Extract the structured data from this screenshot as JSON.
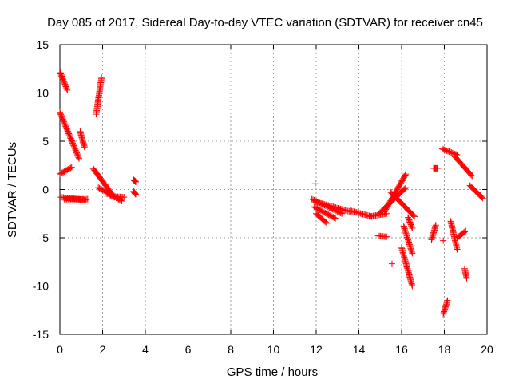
{
  "chart_data": {
    "type": "scatter",
    "title": "Day 085 of 2017, Sidereal Day-to-day VTEC variation (SDTVAR) for receiver cn45",
    "xlabel": "GPS time / hours",
    "ylabel": "SDTVAR / TECUs",
    "xlim": [
      0,
      20
    ],
    "ylim": [
      -15,
      15
    ],
    "xticks": [
      "0",
      "2",
      "4",
      "6",
      "8",
      "10",
      "12",
      "14",
      "16",
      "18",
      "20"
    ],
    "yticks": [
      "-15",
      "-10",
      "-5",
      "0",
      "5",
      "10",
      "15"
    ],
    "grid": true,
    "legend": "none",
    "marker": "+",
    "color": "#ff0000",
    "segments": [
      {
        "x0": 0.02,
        "x1": 0.35,
        "y0": 12.1,
        "y1": 10.3
      },
      {
        "x0": 0.0,
        "x1": 0.9,
        "y0": 8.0,
        "y1": 3.2
      },
      {
        "x0": 0.0,
        "x1": 0.55,
        "y0": 1.6,
        "y1": 2.3
      },
      {
        "x0": 0.05,
        "x1": 1.2,
        "y0": -0.8,
        "y1": -1.1
      },
      {
        "x0": 0.2,
        "x1": 1.3,
        "y0": -1.0,
        "y1": -1.0
      },
      {
        "x0": 0.95,
        "x1": 1.15,
        "y0": 6.0,
        "y1": 4.4
      },
      {
        "x0": 1.7,
        "x1": 1.95,
        "y0": 7.8,
        "y1": 11.6
      },
      {
        "x0": 1.55,
        "x1": 2.55,
        "y0": 2.2,
        "y1": -0.8
      },
      {
        "x0": 1.8,
        "x1": 2.9,
        "y0": 0.2,
        "y1": -1.2
      },
      {
        "x0": 2.3,
        "x1": 3.0,
        "y0": -0.7,
        "y1": -0.8
      },
      {
        "x0": 3.45,
        "x1": 3.55,
        "y0": 1.0,
        "y1": 0.8
      },
      {
        "x0": 3.45,
        "x1": 3.55,
        "y0": -0.2,
        "y1": -0.5
      },
      {
        "x0": 11.8,
        "x1": 13.2,
        "y0": -1.0,
        "y1": -2.5
      },
      {
        "x0": 12.0,
        "x1": 13.6,
        "y0": -1.3,
        "y1": -2.3
      },
      {
        "x0": 11.9,
        "x1": 12.9,
        "y0": -1.8,
        "y1": -3.0
      },
      {
        "x0": 12.0,
        "x1": 12.5,
        "y0": -2.5,
        "y1": -3.5
      },
      {
        "x0": 13.6,
        "x1": 14.6,
        "y0": -2.2,
        "y1": -2.8
      },
      {
        "x0": 14.5,
        "x1": 15.3,
        "y0": -2.8,
        "y1": -2.5
      },
      {
        "x0": 15.2,
        "x1": 16.2,
        "y0": -2.3,
        "y1": 1.6
      },
      {
        "x0": 14.9,
        "x1": 16.2,
        "y0": -2.6,
        "y1": 0.2
      },
      {
        "x0": 15.5,
        "x1": 16.6,
        "y0": -0.3,
        "y1": -2.8
      },
      {
        "x0": 14.9,
        "x1": 15.3,
        "y0": -4.8,
        "y1": -4.9
      },
      {
        "x0": 16.0,
        "x1": 16.5,
        "y0": -6.0,
        "y1": -10.0
      },
      {
        "x0": 16.1,
        "x1": 16.5,
        "y0": -3.8,
        "y1": -6.6
      },
      {
        "x0": 16.3,
        "x1": 16.5,
        "y0": -2.9,
        "y1": -4.0
      },
      {
        "x0": 17.5,
        "x1": 17.7,
        "y0": 2.2,
        "y1": 2.2
      },
      {
        "x0": 17.4,
        "x1": 17.6,
        "y0": -5.2,
        "y1": -3.7
      },
      {
        "x0": 17.9,
        "x1": 18.6,
        "y0": 4.2,
        "y1": 3.6
      },
      {
        "x0": 18.5,
        "x1": 19.3,
        "y0": 3.4,
        "y1": 1.4
      },
      {
        "x0": 19.2,
        "x1": 19.8,
        "y0": 0.4,
        "y1": -0.9
      },
      {
        "x0": 17.95,
        "x1": 18.15,
        "y0": -12.9,
        "y1": -11.5
      },
      {
        "x0": 18.3,
        "x1": 18.6,
        "y0": -3.3,
        "y1": -6.2
      },
      {
        "x0": 18.6,
        "x1": 19.0,
        "y0": -5.0,
        "y1": -4.3
      },
      {
        "x0": 18.95,
        "x1": 19.05,
        "y0": -8.2,
        "y1": -9.2
      }
    ],
    "points": [
      {
        "x": 0.6,
        "y": 5.1
      },
      {
        "x": 15.55,
        "y": -7.7
      },
      {
        "x": 11.95,
        "y": 0.6
      },
      {
        "x": 17.95,
        "y": -5.3
      }
    ]
  }
}
